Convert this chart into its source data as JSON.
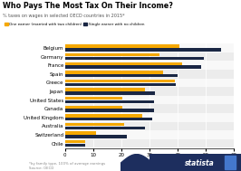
{
  "title": "Who Pays The Most Tax On Their Income?",
  "subtitle": "% taxes on wages in selected OECD countries in 2015*",
  "legend1": "One earner (married with two children)",
  "legend2": "Single earner with no children",
  "countries": [
    "Chile",
    "Switzerland",
    "Australia",
    "United Kingdom",
    "Canada",
    "United States",
    "Japan",
    "Greece",
    "Spain",
    "France",
    "Germany",
    "Belgium"
  ],
  "single_values": [
    7.0,
    22.0,
    28.5,
    31.0,
    31.5,
    31.5,
    32.0,
    39.5,
    40.0,
    48.5,
    49.5,
    55.5
  ],
  "married_values": [
    7.0,
    11.0,
    21.0,
    27.5,
    20.5,
    20.5,
    28.5,
    39.0,
    35.0,
    41.5,
    33.5,
    40.5
  ],
  "color_single": "#1a2744",
  "color_married": "#f5a800",
  "color_bg_even": "#ececec",
  "color_bg_odd": "#f8f8f8",
  "xlim": [
    0,
    60
  ],
  "xticks": [
    0,
    10,
    20,
    30,
    40,
    50,
    60
  ],
  "footer_text": "*by family type, 100% of average earnings\nSource: OECD",
  "statista_color": "#1d2e5e"
}
